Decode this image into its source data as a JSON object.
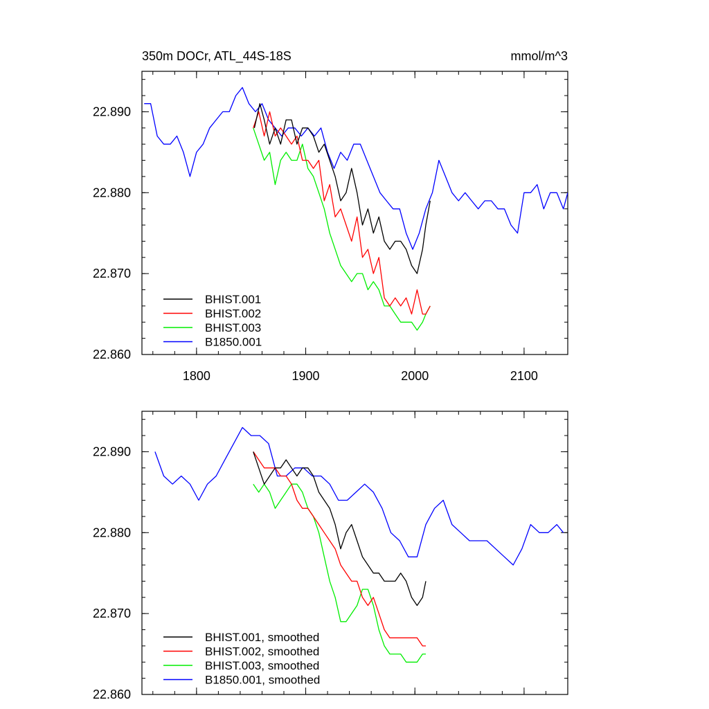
{
  "chart_data": [
    {
      "type": "line",
      "title": "350m DOCr, ATL_44S-18S",
      "units": "mmol/m^3",
      "xlim": [
        1750,
        2140
      ],
      "ylim": [
        22.86,
        22.895
      ],
      "xticks": [
        1800,
        1900,
        2000,
        2100
      ],
      "xtick_labels": [
        "1800",
        "1900",
        "2000",
        "2100"
      ],
      "yticks": [
        22.86,
        22.87,
        22.88,
        22.89
      ],
      "ytick_labels": [
        "22.860",
        "22.870",
        "22.880",
        "22.890"
      ],
      "legend_position": "bottom-left",
      "series": [
        {
          "name": "BHIST.001",
          "color": "#000000",
          "x": [
            1853,
            1858,
            1862,
            1867,
            1872,
            1877,
            1882,
            1887,
            1892,
            1897,
            1902,
            1907,
            1912,
            1917,
            1922,
            1927,
            1932,
            1937,
            1942,
            1947,
            1952,
            1957,
            1962,
            1967,
            1972,
            1977,
            1982,
            1987,
            1992,
            1997,
            2002,
            2007,
            2010,
            2014
          ],
          "y": [
            22.888,
            22.891,
            22.889,
            22.886,
            22.888,
            22.886,
            22.889,
            22.889,
            22.886,
            22.888,
            22.888,
            22.887,
            22.885,
            22.886,
            22.884,
            22.882,
            22.879,
            22.88,
            22.883,
            22.88,
            22.876,
            22.878,
            22.875,
            22.877,
            22.874,
            22.873,
            22.874,
            22.874,
            22.873,
            22.871,
            22.87,
            22.873,
            22.876,
            22.879
          ]
        },
        {
          "name": "BHIST.002",
          "color": "#ff0000",
          "x": [
            1852,
            1857,
            1862,
            1867,
            1872,
            1877,
            1882,
            1887,
            1892,
            1897,
            1902,
            1907,
            1912,
            1917,
            1922,
            1927,
            1932,
            1937,
            1942,
            1947,
            1952,
            1957,
            1962,
            1967,
            1972,
            1977,
            1982,
            1987,
            1992,
            1997,
            2002,
            2007,
            2010,
            2014
          ],
          "y": [
            22.888,
            22.89,
            22.887,
            22.89,
            22.887,
            22.888,
            22.887,
            22.886,
            22.887,
            22.884,
            22.884,
            22.883,
            22.884,
            22.879,
            22.881,
            22.877,
            22.878,
            22.876,
            22.874,
            22.877,
            22.872,
            22.873,
            22.87,
            22.872,
            22.867,
            22.866,
            22.867,
            22.866,
            22.867,
            22.865,
            22.868,
            22.865,
            22.865,
            22.866
          ]
        },
        {
          "name": "BHIST.003",
          "color": "#00ee00",
          "x": [
            1852,
            1857,
            1862,
            1867,
            1872,
            1877,
            1882,
            1887,
            1892,
            1897,
            1902,
            1907,
            1912,
            1917,
            1922,
            1927,
            1932,
            1937,
            1942,
            1947,
            1952,
            1957,
            1962,
            1967,
            1972,
            1977,
            1982,
            1987,
            1992,
            1997,
            2002,
            2007,
            2010,
            2014
          ],
          "y": [
            22.888,
            22.886,
            22.884,
            22.885,
            22.881,
            22.884,
            22.885,
            22.884,
            22.884,
            22.886,
            22.883,
            22.882,
            22.88,
            22.878,
            22.875,
            22.873,
            22.871,
            22.87,
            22.869,
            22.87,
            22.87,
            22.868,
            22.869,
            22.868,
            22.866,
            22.866,
            22.865,
            22.864,
            22.864,
            22.864,
            22.863,
            22.864,
            22.865,
            22.866
          ]
        },
        {
          "name": "B1850.001",
          "color": "#0000ff",
          "x": [
            1752,
            1758,
            1764,
            1770,
            1776,
            1782,
            1788,
            1794,
            1800,
            1806,
            1812,
            1818,
            1824,
            1830,
            1836,
            1842,
            1848,
            1854,
            1860,
            1866,
            1872,
            1878,
            1884,
            1890,
            1896,
            1902,
            1908,
            1914,
            1920,
            1926,
            1932,
            1938,
            1944,
            1950,
            1956,
            1962,
            1968,
            1974,
            1980,
            1986,
            1992,
            1998,
            2004,
            2010,
            2016,
            2022,
            2028,
            2034,
            2040,
            2046,
            2052,
            2058,
            2064,
            2070,
            2076,
            2082,
            2088,
            2094,
            2100,
            2106,
            2112,
            2118,
            2124,
            2130,
            2136,
            2140
          ],
          "y": [
            22.891,
            22.891,
            22.887,
            22.886,
            22.886,
            22.887,
            22.885,
            22.882,
            22.885,
            22.886,
            22.888,
            22.889,
            22.89,
            22.89,
            22.892,
            22.893,
            22.891,
            22.89,
            22.891,
            22.889,
            22.888,
            22.887,
            22.888,
            22.888,
            22.887,
            22.888,
            22.887,
            22.888,
            22.885,
            22.883,
            22.885,
            22.884,
            22.886,
            22.886,
            22.884,
            22.882,
            22.88,
            22.879,
            22.878,
            22.878,
            22.875,
            22.873,
            22.875,
            22.878,
            22.88,
            22.884,
            22.882,
            22.88,
            22.879,
            22.88,
            22.879,
            22.878,
            22.879,
            22.879,
            22.878,
            22.878,
            22.876,
            22.875,
            22.88,
            22.88,
            22.881,
            22.878,
            22.88,
            22.88,
            22.878,
            22.88
          ]
        }
      ]
    },
    {
      "type": "line",
      "xlim": [
        1750,
        2140
      ],
      "ylim": [
        22.86,
        22.895
      ],
      "xticks": [
        1800,
        1900,
        2000,
        2100
      ],
      "yticks": [
        22.86,
        22.87,
        22.88,
        22.89
      ],
      "ytick_labels": [
        "22.860",
        "22.870",
        "22.880",
        "22.890"
      ],
      "legend_position": "bottom-left",
      "series": [
        {
          "name": "BHIST.001, smoothed",
          "color": "#000000",
          "x": [
            1852,
            1857,
            1862,
            1867,
            1872,
            1877,
            1882,
            1887,
            1892,
            1897,
            1902,
            1907,
            1912,
            1917,
            1922,
            1927,
            1932,
            1937,
            1942,
            1947,
            1952,
            1957,
            1962,
            1967,
            1972,
            1977,
            1982,
            1987,
            1992,
            1997,
            2002,
            2007,
            2010
          ],
          "y": [
            22.89,
            22.888,
            22.886,
            22.887,
            22.888,
            22.888,
            22.889,
            22.888,
            22.887,
            22.888,
            22.888,
            22.887,
            22.885,
            22.884,
            22.883,
            22.881,
            22.878,
            22.88,
            22.881,
            22.879,
            22.877,
            22.876,
            22.875,
            22.875,
            22.874,
            22.874,
            22.874,
            22.875,
            22.874,
            22.872,
            22.871,
            22.872,
            22.874
          ]
        },
        {
          "name": "BHIST.002, smoothed",
          "color": "#ff0000",
          "x": [
            1852,
            1857,
            1862,
            1867,
            1872,
            1877,
            1882,
            1887,
            1892,
            1897,
            1902,
            1907,
            1912,
            1917,
            1922,
            1927,
            1932,
            1937,
            1942,
            1947,
            1952,
            1957,
            1962,
            1967,
            1972,
            1977,
            1982,
            1987,
            1992,
            1997,
            2002,
            2007,
            2010
          ],
          "y": [
            22.89,
            22.889,
            22.888,
            22.888,
            22.888,
            22.887,
            22.887,
            22.886,
            22.884,
            22.883,
            22.883,
            22.882,
            22.881,
            22.88,
            22.879,
            22.878,
            22.876,
            22.875,
            22.874,
            22.874,
            22.872,
            22.871,
            22.872,
            22.87,
            22.868,
            22.867,
            22.867,
            22.867,
            22.867,
            22.867,
            22.867,
            22.866,
            22.866
          ]
        },
        {
          "name": "BHIST.003, smoothed",
          "color": "#00ee00",
          "x": [
            1852,
            1857,
            1862,
            1867,
            1872,
            1877,
            1882,
            1887,
            1892,
            1897,
            1902,
            1907,
            1912,
            1917,
            1922,
            1927,
            1932,
            1937,
            1942,
            1947,
            1952,
            1957,
            1962,
            1967,
            1972,
            1977,
            1982,
            1987,
            1992,
            1997,
            2002,
            2007,
            2010
          ],
          "y": [
            22.886,
            22.885,
            22.886,
            22.885,
            22.883,
            22.884,
            22.885,
            22.886,
            22.886,
            22.885,
            22.883,
            22.882,
            22.88,
            22.877,
            22.874,
            22.872,
            22.869,
            22.869,
            22.87,
            22.871,
            22.873,
            22.873,
            22.871,
            22.868,
            22.866,
            22.865,
            22.865,
            22.865,
            22.864,
            22.864,
            22.864,
            22.865,
            22.865
          ]
        },
        {
          "name": "B1850.001, smoothed",
          "color": "#0000ff",
          "x": [
            1762,
            1770,
            1778,
            1786,
            1794,
            1802,
            1810,
            1818,
            1826,
            1834,
            1842,
            1850,
            1858,
            1866,
            1874,
            1882,
            1890,
            1898,
            1906,
            1914,
            1922,
            1930,
            1938,
            1946,
            1954,
            1962,
            1970,
            1978,
            1986,
            1994,
            2002,
            2010,
            2018,
            2026,
            2034,
            2042,
            2050,
            2058,
            2066,
            2074,
            2082,
            2090,
            2098,
            2106,
            2114,
            2122,
            2130,
            2136
          ],
          "y": [
            22.89,
            22.887,
            22.886,
            22.887,
            22.886,
            22.884,
            22.886,
            22.887,
            22.889,
            22.891,
            22.893,
            22.892,
            22.892,
            22.891,
            22.887,
            22.887,
            22.888,
            22.888,
            22.887,
            22.887,
            22.886,
            22.884,
            22.884,
            22.885,
            22.886,
            22.885,
            22.883,
            22.88,
            22.879,
            22.877,
            22.877,
            22.881,
            22.883,
            22.884,
            22.881,
            22.88,
            22.879,
            22.879,
            22.879,
            22.878,
            22.877,
            22.876,
            22.878,
            22.881,
            22.88,
            22.88,
            22.881,
            22.88
          ]
        }
      ]
    }
  ]
}
